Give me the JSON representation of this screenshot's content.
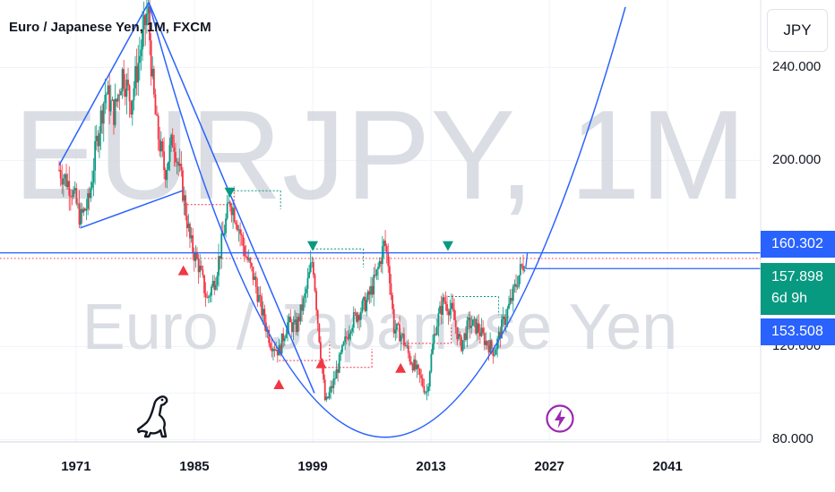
{
  "chart_title": "Euro / Japanese Yen, 1M, FXCM",
  "currency_button": "JPY",
  "watermark": {
    "line1": "EURJPY, 1M",
    "line2": "Euro / Japanese Yen"
  },
  "price_tags": {
    "upper": "160.302",
    "current": "157.898",
    "countdown": "6d 9h",
    "lower": "153.508"
  },
  "colors": {
    "up": "#089981",
    "down": "#f23645",
    "line": "#2962ff",
    "watermark": "#c9cbd1"
  },
  "icons": {
    "logo": "tradingview-dino-icon",
    "flash": "lightning-icon"
  },
  "chart_data": {
    "type": "candlestick",
    "title": "Euro / Japanese Yen, 1M, FXCM",
    "x_ticks": [
      1971,
      1985,
      1999,
      2013,
      2027,
      2041
    ],
    "y_ticks": [
      80,
      120,
      200,
      240
    ],
    "y_tick_labels": [
      "80.000",
      "120.000",
      "200.000",
      "240.000"
    ],
    "xlim": [
      1962,
      2052
    ],
    "ylim": [
      79,
      269
    ],
    "grid": true,
    "price_path": [
      [
        1969,
        196
      ],
      [
        1970.5,
        188
      ],
      [
        1971.5,
        175
      ],
      [
        1972.5,
        182
      ],
      [
        1973.5,
        210
      ],
      [
        1974.5,
        230
      ],
      [
        1975.5,
        220
      ],
      [
        1976.5,
        238
      ],
      [
        1977.5,
        225
      ],
      [
        1978.5,
        245
      ],
      [
        1979.5,
        265
      ],
      [
        1980,
        235
      ],
      [
        1980.5,
        215
      ],
      [
        1981.5,
        195
      ],
      [
        1982.5,
        210
      ],
      [
        1983.5,
        190
      ],
      [
        1984.5,
        165
      ],
      [
        1985.5,
        155
      ],
      [
        1986.5,
        140
      ],
      [
        1987.5,
        150
      ],
      [
        1988,
        160
      ],
      [
        1989.2,
        183
      ],
      [
        1990,
        175
      ],
      [
        1991,
        160
      ],
      [
        1992,
        150
      ],
      [
        1993,
        135
      ],
      [
        1994,
        122
      ],
      [
        1995,
        118
      ],
      [
        1996,
        130
      ],
      [
        1997,
        128
      ],
      [
        1998,
        140
      ],
      [
        1999,
        158
      ],
      [
        1999.5,
        135
      ],
      [
        2000,
        115
      ],
      [
        2000.5,
        95
      ],
      [
        2001.5,
        105
      ],
      [
        2002.5,
        118
      ],
      [
        2003.5,
        130
      ],
      [
        2004.5,
        135
      ],
      [
        2005.5,
        140
      ],
      [
        2006.5,
        150
      ],
      [
        2007.5,
        165
      ],
      [
        2008,
        155
      ],
      [
        2008.6,
        128
      ],
      [
        2009.5,
        125
      ],
      [
        2010.5,
        115
      ],
      [
        2011.5,
        108
      ],
      [
        2012.5,
        100
      ],
      [
        2013,
        115
      ],
      [
        2013.5,
        128
      ],
      [
        2014.5,
        140
      ],
      [
        2015.5,
        135
      ],
      [
        2016.5,
        120
      ],
      [
        2017.5,
        130
      ],
      [
        2018.5,
        128
      ],
      [
        2019.5,
        122
      ],
      [
        2020.5,
        118
      ],
      [
        2021.5,
        130
      ],
      [
        2022.5,
        140
      ],
      [
        2023.5,
        152
      ],
      [
        2024.2,
        158
      ]
    ],
    "horizontal_lines": [
      160.302,
      157.898,
      153.508
    ],
    "trend_lines": [
      {
        "from": [
          1969,
          198
        ],
        "to": [
          1979.6,
          268
        ]
      },
      {
        "from": [
          1979.6,
          268
        ],
        "to": [
          1999.2,
          100
        ]
      },
      {
        "from": [
          1971.5,
          171
        ],
        "to": [
          1983.6,
          187
        ]
      }
    ],
    "cup_curve": {
      "apex": [
        2007.5,
        81
      ],
      "left": [
        1979.6,
        268
      ],
      "right": [
        2036,
        266
      ]
    },
    "markers": [
      {
        "type": "sell",
        "x": 1989.2,
        "y": 186
      },
      {
        "type": "sell",
        "x": 1999.0,
        "y": 163
      },
      {
        "type": "sell",
        "x": 2015.0,
        "y": 163
      },
      {
        "type": "buy",
        "x": 1983.7,
        "y": 153
      },
      {
        "type": "buy",
        "x": 1995.0,
        "y": 104
      },
      {
        "type": "buy",
        "x": 2000.0,
        "y": 113
      },
      {
        "type": "buy",
        "x": 2009.4,
        "y": 111
      }
    ]
  }
}
